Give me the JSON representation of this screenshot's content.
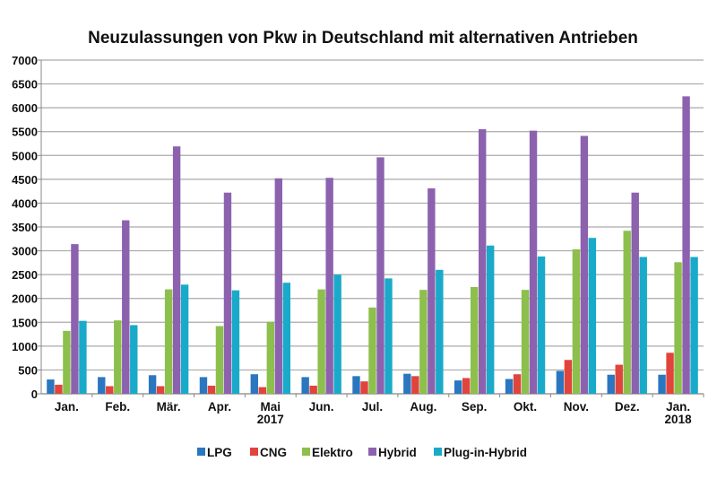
{
  "chart_data": {
    "type": "bar",
    "title": "Neuzulassungen von Pkw in Deutschland mit alternativen Antrieben",
    "xlabel": "",
    "ylabel": "",
    "ylim": [
      0,
      7000
    ],
    "yticks": [
      0,
      500,
      1000,
      1500,
      2000,
      2500,
      3000,
      3500,
      4000,
      4500,
      5000,
      5500,
      6000,
      6500,
      7000
    ],
    "grid": true,
    "legend": "bottom",
    "categories": [
      "Jan.",
      "Feb.",
      "Mär.",
      "Apr.",
      "Mai",
      "Jun.",
      "Jul.",
      "Aug.",
      "Sep.",
      "Okt.",
      "Nov.",
      "Dez.",
      "Jan."
    ],
    "category_sublabels": [
      "",
      "",
      "",
      "",
      "2017",
      "",
      "",
      "",
      "",
      "",
      "",
      "",
      "2018"
    ],
    "series": [
      {
        "name": "LPG",
        "color": "#2a77c0",
        "values": [
          300,
          350,
          390,
          350,
          410,
          350,
          370,
          420,
          280,
          310,
          480,
          400,
          400
        ]
      },
      {
        "name": "CNG",
        "color": "#e0443c",
        "values": [
          190,
          160,
          160,
          170,
          140,
          170,
          260,
          370,
          330,
          410,
          710,
          610,
          860
        ]
      },
      {
        "name": "Elektro",
        "color": "#8dbf4c",
        "values": [
          1320,
          1540,
          2190,
          1420,
          1510,
          2190,
          1810,
          2180,
          2240,
          2180,
          3030,
          3420,
          2760
        ]
      },
      {
        "name": "Hybrid",
        "color": "#8c62af",
        "values": [
          3140,
          3640,
          5190,
          4220,
          4520,
          4530,
          4960,
          4310,
          5550,
          5520,
          5410,
          4220,
          6240
        ]
      },
      {
        "name": "Plug-in-Hybrid",
        "color": "#19aac9",
        "values": [
          1530,
          1440,
          2290,
          2170,
          2330,
          2500,
          2420,
          2600,
          3110,
          2880,
          3270,
          2870,
          2870
        ]
      }
    ]
  }
}
